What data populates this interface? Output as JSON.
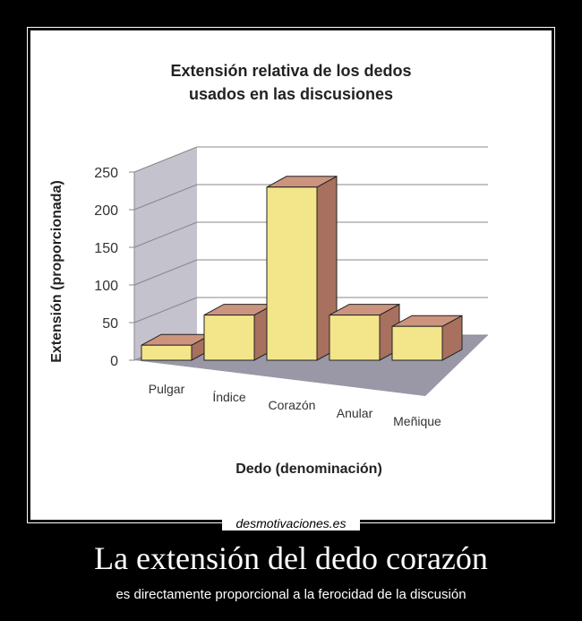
{
  "poster": {
    "site": "desmotivaciones.es",
    "caption": "La extensión del dedo corazón",
    "subcaption": "es directamente proporcional a la ferocidad de la discusión"
  },
  "chart_data": {
    "type": "bar3d",
    "title": "Extensión relativa de los dedos",
    "subtitle": "usados en las discusiones",
    "x_label": "Dedo (denominación)",
    "y_label": "Extensión (proporcionada)",
    "categories": [
      "Pulgar",
      "Índice",
      "Corazón",
      "Anular",
      "Meñique"
    ],
    "values": [
      20,
      60,
      230,
      60,
      45
    ],
    "color": "#f3e68a",
    "ylim": [
      0,
      250
    ],
    "yticks": [
      0,
      50,
      100,
      150,
      200,
      250
    ],
    "grid": true
  }
}
